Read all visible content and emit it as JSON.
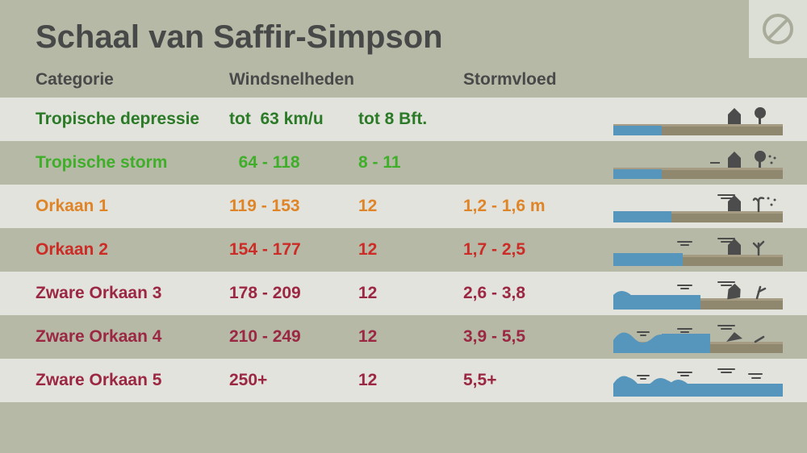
{
  "title": "Schaal van Saffir-Simpson",
  "columns": {
    "category": "Categorie",
    "speed": "Windsnelheden",
    "surge": "Stormvloed"
  },
  "colors": {
    "bg": "#b5b9a6",
    "stripe": "#e2e3dc",
    "heading": "#474848",
    "water": "#5695bc",
    "land": "#90876f",
    "land_top": "#a59c83",
    "object": "#4c4c4c"
  },
  "rows": [
    {
      "category": "Tropische depressie",
      "speed": "tot  63 km/u",
      "bft": "tot 8 Bft.",
      "surge": "",
      "color": "#2b7a27",
      "striped": true,
      "damage": 0
    },
    {
      "category": "Tropische storm",
      "speed": "  64 - 118",
      "bft": "8 - 11",
      "surge": "",
      "color": "#3fae29",
      "striped": false,
      "damage": 1
    },
    {
      "category": "Orkaan 1",
      "speed": "119 - 153",
      "bft": "12",
      "surge": "1,2 - 1,6 m",
      "color": "#df8427",
      "striped": true,
      "damage": 2
    },
    {
      "category": "Orkaan 2",
      "speed": "154 - 177",
      "bft": "12",
      "surge": "1,7 - 2,5",
      "color": "#cc2b26",
      "striped": false,
      "damage": 3
    },
    {
      "category": "Zware Orkaan 3",
      "speed": "178 - 209",
      "bft": "12",
      "surge": "2,6 - 3,8",
      "color": "#9b2743",
      "striped": true,
      "damage": 4
    },
    {
      "category": "Zware Orkaan 4",
      "speed": "210 - 249",
      "bft": "12",
      "surge": "3,9 - 5,5",
      "color": "#9b2743",
      "striped": false,
      "damage": 5
    },
    {
      "category": "Zware Orkaan 5",
      "speed": "250+",
      "bft": "12",
      "surge": "5,5+",
      "color": "#9b2743",
      "striped": true,
      "damage": 6
    }
  ]
}
